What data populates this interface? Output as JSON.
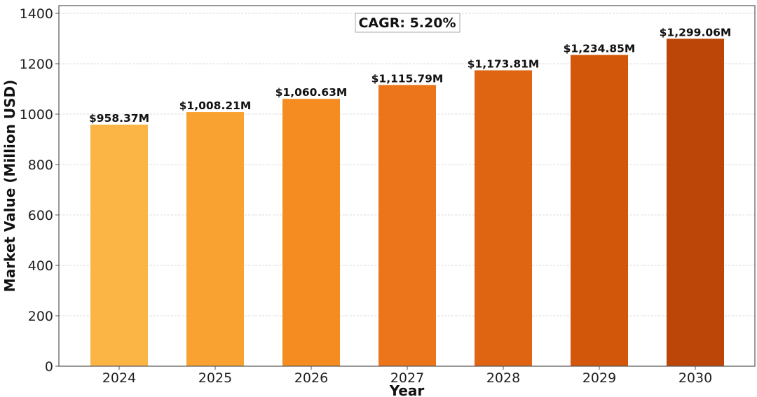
{
  "chart_data": {
    "type": "bar",
    "title": "",
    "xlabel": "Year",
    "ylabel": "Market Value (Million USD)",
    "categories": [
      "2024",
      "2025",
      "2026",
      "2027",
      "2028",
      "2029",
      "2030"
    ],
    "values": [
      958.37,
      1008.21,
      1060.63,
      1115.79,
      1173.81,
      1234.85,
      1299.06
    ],
    "data_labels": [
      "$958.37M",
      "$1,008.21M",
      "$1,060.63M",
      "$1,115.79M",
      "$1,173.81M",
      "$1,234.85M",
      "$1,299.06M"
    ],
    "colors": [
      "#fbb545",
      "#f9a231",
      "#f48c22",
      "#ec751b",
      "#e06513",
      "#d3570b",
      "#bb4608"
    ],
    "ylim": [
      0,
      1430
    ],
    "yticks": [
      0,
      200,
      400,
      600,
      800,
      1000,
      1200,
      1400
    ],
    "grid": "y-dashed",
    "annotation": "CAGR: 5.20%",
    "annotation_placement": "top-center"
  }
}
